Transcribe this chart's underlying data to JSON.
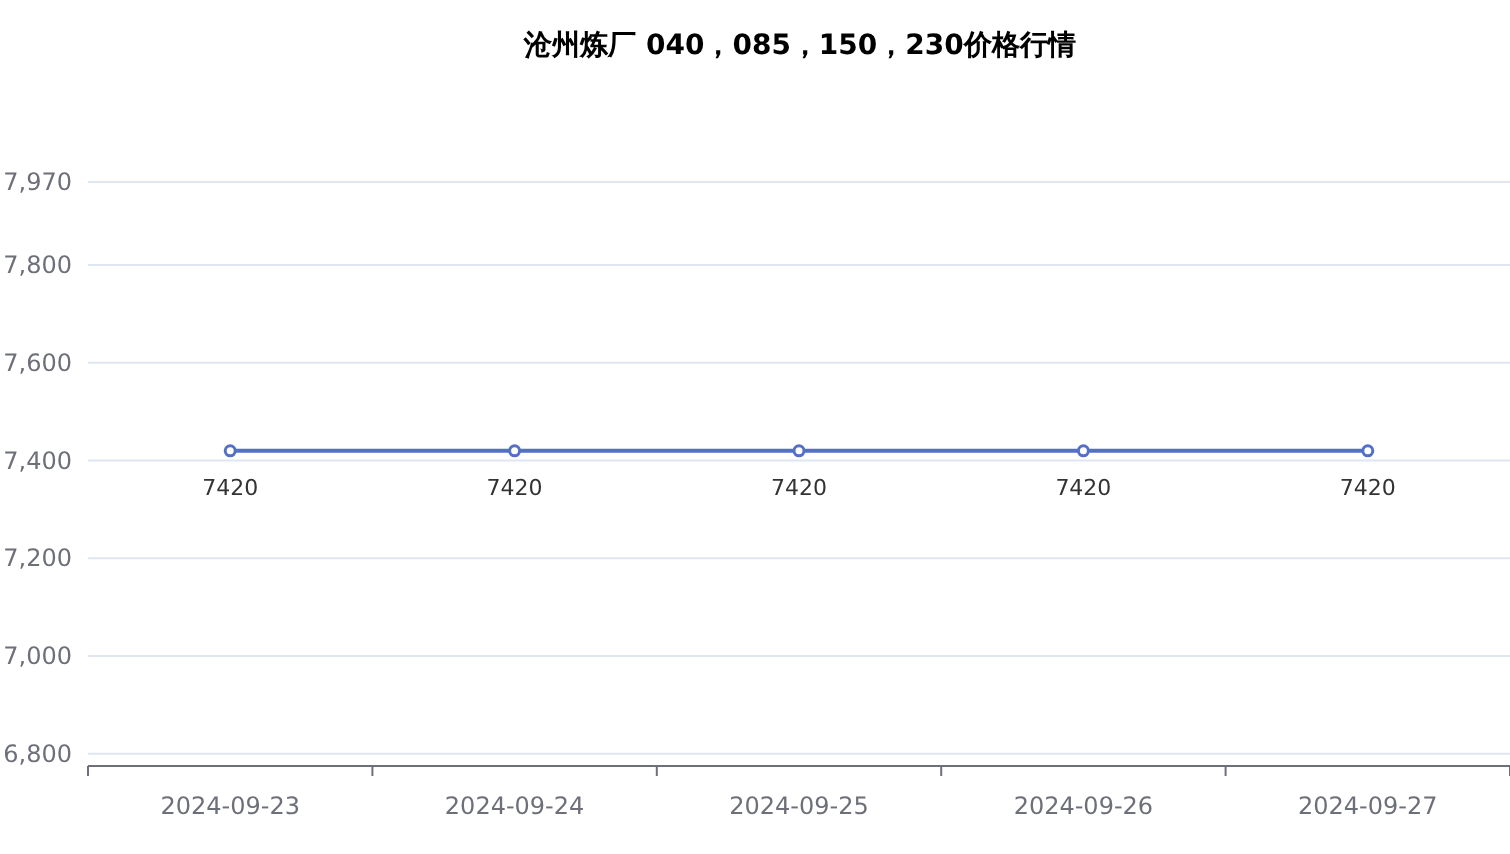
{
  "chart_data": {
    "type": "line",
    "title": "沧州炼厂 040，085，150，230价格行情",
    "categories": [
      "2024-09-23",
      "2024-09-24",
      "2024-09-25",
      "2024-09-26",
      "2024-09-27"
    ],
    "series": [
      {
        "color": "#5470c6",
        "values": [
          7420,
          7420,
          7420,
          7420,
          7420
        ]
      }
    ],
    "ylim": [
      6775,
      7970
    ],
    "yticks": [
      {
        "value": 6800,
        "label": "6,800"
      },
      {
        "value": 7000,
        "label": "7,000"
      },
      {
        "value": 7200,
        "label": "7,200"
      },
      {
        "value": 7400,
        "label": "7,400"
      },
      {
        "value": 7600,
        "label": "7,600"
      },
      {
        "value": 7800,
        "label": "7,800"
      },
      {
        "value": 7970,
        "label": "7,970"
      }
    ],
    "grid": "y",
    "marker": "circle",
    "data_labels": true
  }
}
